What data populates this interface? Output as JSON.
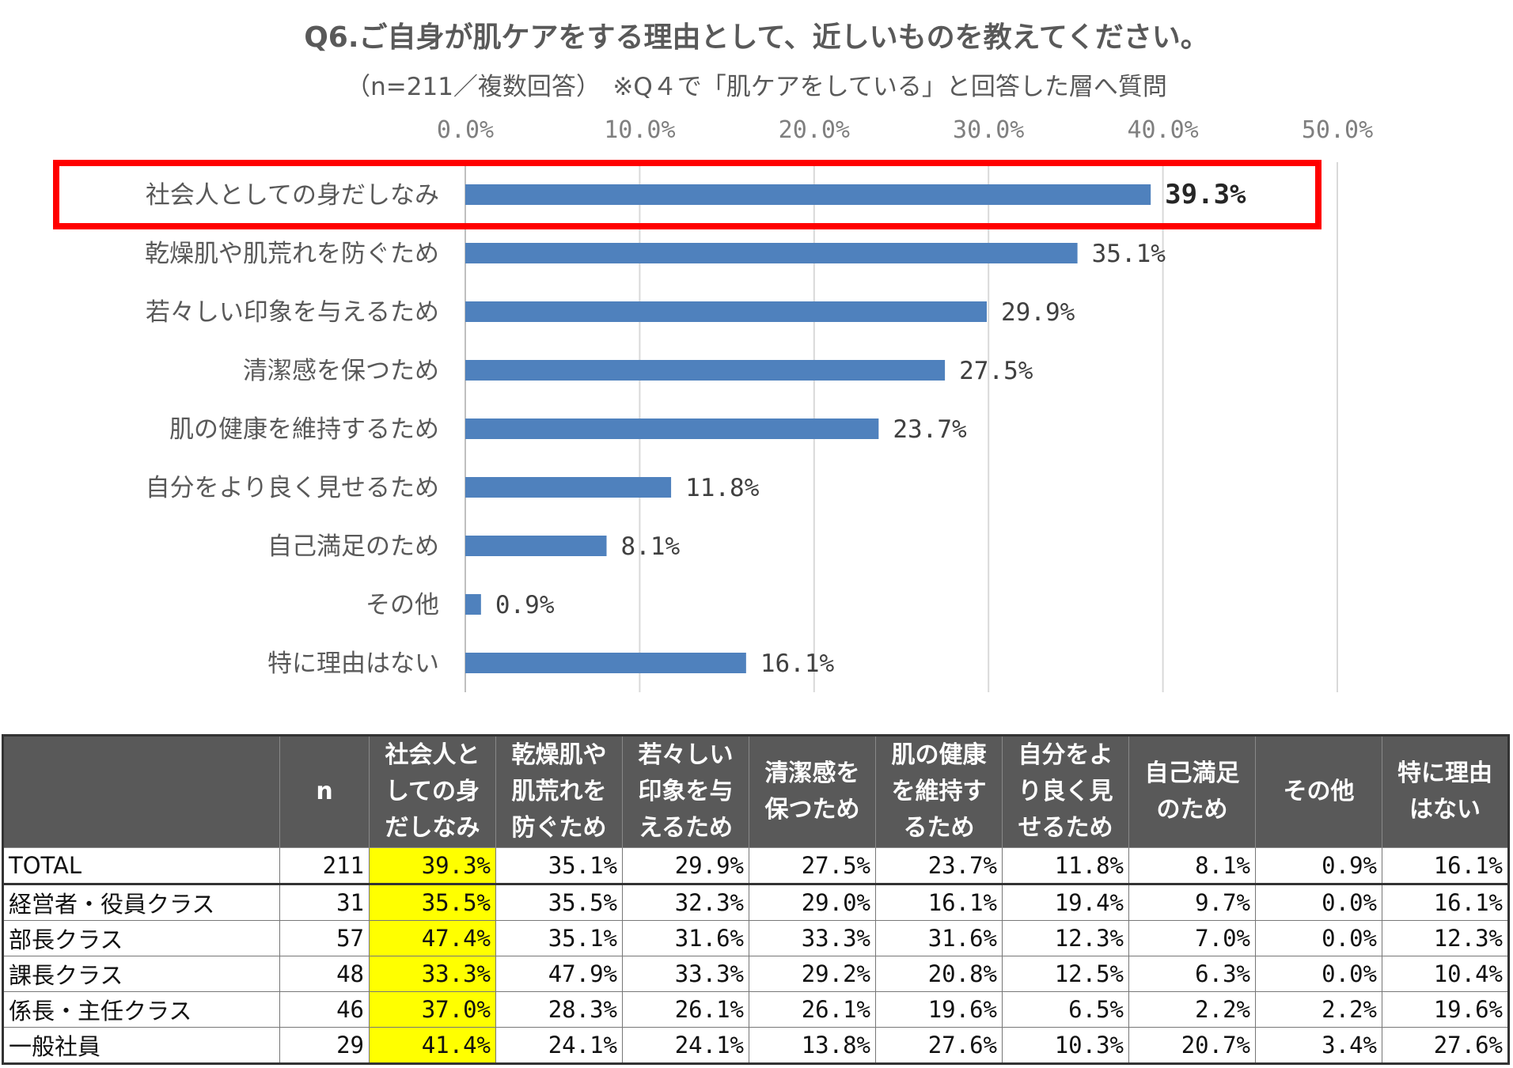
{
  "header": {
    "title": "Q6.ご自身が肌ケアをする理由として、近しいものを教えてください。",
    "subtitle": "（n=211／複数回答）　※Q４で「肌ケアをしている」と回答した層へ質問"
  },
  "chart_data": {
    "type": "bar",
    "orientation": "horizontal",
    "categories": [
      "社会人としての身だしなみ",
      "乾燥肌や肌荒れを防ぐため",
      "若々しい印象を与えるため",
      "清潔感を保つため",
      "肌の健康を維持するため",
      "自分をより良く見せるため",
      "自己満足のため",
      "その他",
      "特に理由はない"
    ],
    "values": [
      39.3,
      35.1,
      29.9,
      27.5,
      23.7,
      11.8,
      8.1,
      0.9,
      16.1
    ],
    "value_labels": [
      "39.3%",
      "35.1%",
      "29.9%",
      "27.5%",
      "23.7%",
      "11.8%",
      "8.1%",
      "0.9%",
      "16.1%"
    ],
    "x_ticks": [
      "0.0%",
      "10.0%",
      "20.0%",
      "30.0%",
      "40.0%",
      "50.0%"
    ],
    "xlim": [
      0,
      50
    ],
    "bar_color": "#4f81bd",
    "highlight_color": "#ff0000",
    "highlight_category": "社会人としての身だしなみ",
    "grid": true
  },
  "table": {
    "headers": [
      "",
      "n",
      "社会人と\nしての身\nだしなみ",
      "乾燥肌や\n肌荒れを\n防ぐため",
      "若々しい\n印象を与\nえるため",
      "清潔感を\n保つため",
      "肌の健康\nを維持す\nるため",
      "自分をよ\nり良く見\nせるため",
      "自己満足\nのため",
      "その他",
      "特に理由\nはない"
    ],
    "rows": [
      [
        "TOTAL",
        "211",
        "39.3%",
        "35.1%",
        "29.9%",
        "27.5%",
        "23.7%",
        "11.8%",
        "8.1%",
        "0.9%",
        "16.1%"
      ],
      [
        "経営者・役員クラス",
        "31",
        "35.5%",
        "35.5%",
        "32.3%",
        "29.0%",
        "16.1%",
        "19.4%",
        "9.7%",
        "0.0%",
        "16.1%"
      ],
      [
        "部長クラス",
        "57",
        "47.4%",
        "35.1%",
        "31.6%",
        "33.3%",
        "31.6%",
        "12.3%",
        "7.0%",
        "0.0%",
        "12.3%"
      ],
      [
        "課長クラス",
        "48",
        "33.3%",
        "47.9%",
        "33.3%",
        "29.2%",
        "20.8%",
        "12.5%",
        "6.3%",
        "0.0%",
        "10.4%"
      ],
      [
        "係長・主任クラス",
        "46",
        "37.0%",
        "28.3%",
        "26.1%",
        "26.1%",
        "19.6%",
        "6.5%",
        "2.2%",
        "2.2%",
        "19.6%"
      ],
      [
        "一般社員",
        "29",
        "41.4%",
        "24.1%",
        "24.1%",
        "13.8%",
        "27.6%",
        "10.3%",
        "20.7%",
        "3.4%",
        "27.6%"
      ]
    ],
    "highlight_color": "#ffff00"
  }
}
